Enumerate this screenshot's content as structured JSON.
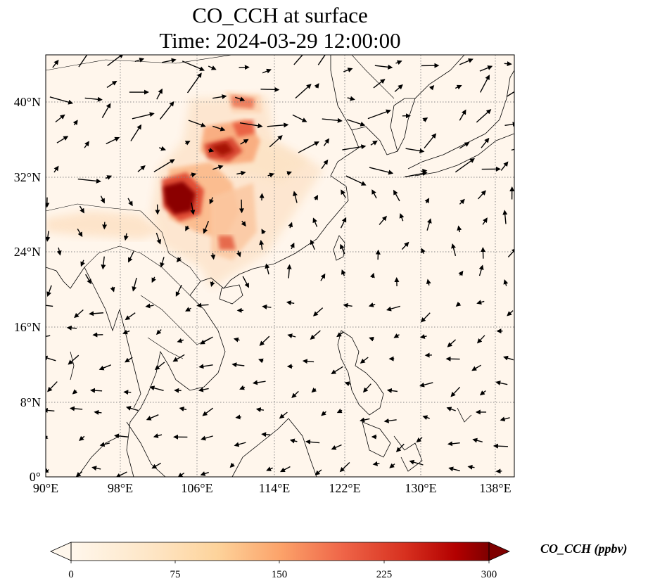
{
  "title_line1": "CO_CCH at surface",
  "title_line2": "Time: 2024-03-29 12:00:00",
  "map": {
    "lon_range": [
      90,
      139
    ],
    "lat_range": [
      0,
      45
    ],
    "x_ticks": [
      "90°E",
      "98°E",
      "106°E",
      "114°E",
      "122°E",
      "130°E",
      "138°E"
    ],
    "y_ticks": [
      "0°",
      "8°N",
      "16°N",
      "24°N",
      "32°N",
      "40°N"
    ],
    "gridlines": true,
    "background_color": "#fff6ec",
    "features": [
      "coastlines",
      "country borders",
      "wind vectors",
      "CO_CCH concentration shading"
    ]
  },
  "colorbar": {
    "label": "CO_CCH (ppbv)",
    "ticks": [
      "0",
      "75",
      "150",
      "225",
      "300"
    ],
    "range": [
      0,
      300
    ],
    "colormap": "OrRd",
    "extend": "both"
  }
}
